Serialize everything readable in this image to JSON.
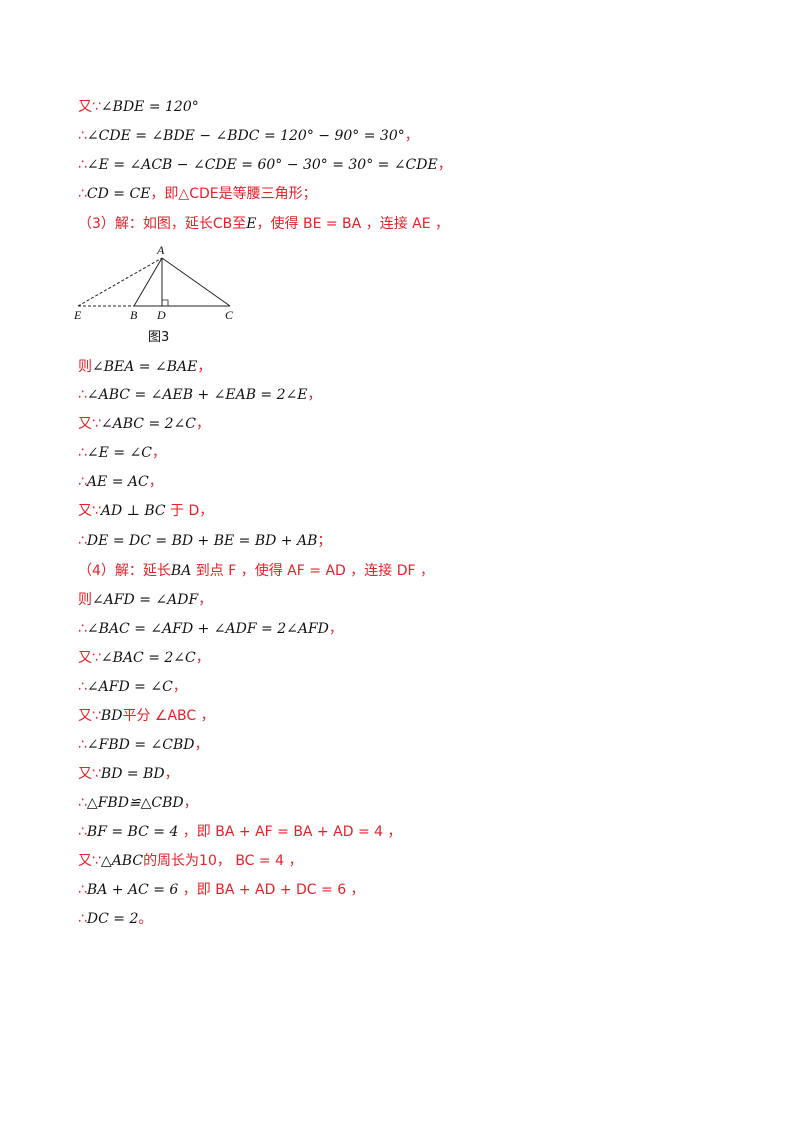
{
  "lines": [
    {
      "prefix": "又∵",
      "math": "∠BDE = 120°",
      "suffix": ""
    },
    {
      "prefix": "∴",
      "math": "∠CDE = ∠BDE − ∠BDC = 120° − 90° = 30°",
      "suffix": "，"
    },
    {
      "prefix": "∴",
      "math": "∠E = ∠ACB − ∠CDE = 60° − 30° = 30° = ∠CDE",
      "suffix": "，"
    },
    {
      "prefix": "∴",
      "math": "CD = CE",
      "suffix": "，即△CDE是等腰三角形；"
    },
    {
      "prefix": "（3）解：如图，延长CB至",
      "math": "E",
      "suffix": "，使得 BE = BA ，连接 AE ，"
    },
    {
      "prefix": "则",
      "math": "∠BEA = ∠BAE",
      "suffix": "，"
    },
    {
      "prefix": "∴",
      "math": "∠ABC = ∠AEB + ∠EAB = 2∠E",
      "suffix": "，"
    },
    {
      "prefix": "又∵",
      "math": "∠ABC = 2∠C",
      "suffix": "，"
    },
    {
      "prefix": "∴",
      "math": "∠E = ∠C",
      "suffix": "，"
    },
    {
      "prefix": "∴",
      "math": "AE = AC",
      "suffix": "，"
    },
    {
      "prefix": "又∵",
      "math": "AD ⊥ BC",
      "suffix": " 于 D，"
    },
    {
      "prefix": "∴",
      "math": "DE = DC = BD + BE = BD + AB",
      "suffix": "；"
    },
    {
      "prefix": "（4）解：延长",
      "math": "BA",
      "suffix": " 到点 F ，使得 AF = AD ，连接 DF ，"
    },
    {
      "prefix": "则",
      "math": "∠AFD = ∠ADF",
      "suffix": "，"
    },
    {
      "prefix": "∴",
      "math": "∠BAC = ∠AFD + ∠ADF = 2∠AFD",
      "suffix": "，"
    },
    {
      "prefix": "又∵",
      "math": "∠BAC = 2∠C",
      "suffix": "，"
    },
    {
      "prefix": "∴",
      "math": "∠AFD = ∠C",
      "suffix": "，"
    },
    {
      "prefix": "又∵",
      "math": "BD",
      "suffix": "平分 ∠ABC ，"
    },
    {
      "prefix": "∴",
      "math": "∠FBD = ∠CBD",
      "suffix": "，"
    },
    {
      "prefix": "又∵",
      "math": "BD = BD",
      "suffix": "，"
    },
    {
      "prefix": "∴",
      "math": "△FBD≌△CBD",
      "suffix": "，"
    },
    {
      "prefix": "∴",
      "math": "BF = BC = 4",
      "suffix": " ，即 BA + AF = BA + AD = 4 ，"
    },
    {
      "prefix": "又∵",
      "math": "△ABC",
      "suffix": "的周长为10， BC = 4 ，"
    },
    {
      "prefix": "∴",
      "math": "BA + AC = 6",
      "suffix": " ，即 BA + AD + DC = 6 ，"
    },
    {
      "prefix": "∴",
      "math": "DC = 2",
      "suffix": "。"
    }
  ],
  "figure": {
    "labels": {
      "A": "A",
      "E": "E",
      "B": "B",
      "D": "D",
      "C": "C"
    },
    "caption": "图3"
  }
}
